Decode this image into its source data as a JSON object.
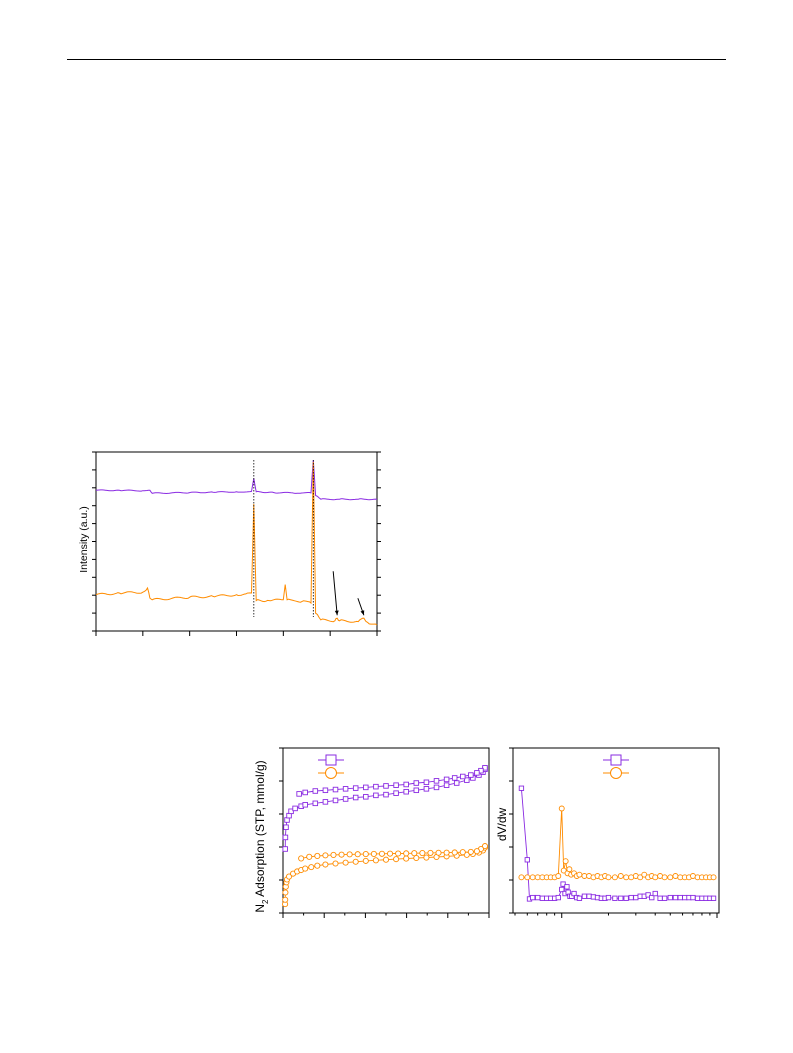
{
  "colors": {
    "purple": "#8a2be2",
    "orange": "#ff8c00",
    "axis": "#000000"
  },
  "chart_data": [
    {
      "type": "line",
      "id": "xrd",
      "title": "",
      "xlabel": "",
      "ylabel": "Intensity (a.u.)",
      "xlim": [
        0,
        60
      ],
      "ylim": [
        0,
        100
      ],
      "grid": false,
      "ticks_labeled": false,
      "dashed_reference_x": [
        33.7,
        46.4
      ],
      "arrows": [
        {
          "to_x": 51.5,
          "to_y": 7
        },
        {
          "to_x": 57.2,
          "to_y": 7
        }
      ],
      "series": [
        {
          "color": "purple",
          "baseline": 60,
          "x": [
            0,
            5,
            10,
            11.5,
            12,
            20,
            25,
            30,
            33.2,
            33.7,
            34.2,
            38,
            42,
            45.9,
            46.4,
            46.9,
            48,
            52,
            56,
            60
          ],
          "y": [
            59,
            59,
            58.5,
            59,
            55,
            56,
            56.5,
            57,
            57.5,
            75,
            57,
            56,
            55.5,
            55.5,
            100,
            52,
            47,
            47,
            47,
            47
          ]
        },
        {
          "color": "orange",
          "baseline": 20,
          "x": [
            0,
            5,
            10,
            11,
            11.5,
            12,
            20,
            25,
            30,
            32,
            33.2,
            33.7,
            34.2,
            37,
            40,
            40.4,
            40.8,
            44,
            45.9,
            46.4,
            46.9,
            48,
            51,
            51.5,
            52,
            56,
            57.2,
            58,
            60
          ],
          "y": [
            21,
            22,
            22.5,
            25,
            19,
            18,
            19.5,
            20,
            21,
            21.5,
            22,
            75,
            17.5,
            17.5,
            18,
            27,
            18,
            17,
            16,
            100,
            10,
            6,
            5.5,
            7,
            5.5,
            5,
            7,
            4.5,
            3
          ]
        }
      ]
    },
    {
      "type": "scatter",
      "id": "isotherm",
      "xlabel": "",
      "ylabel": "N2 Adsorption (STP, mmol/g)",
      "ylabel_main": "N",
      "ylabel_sub": "2",
      "ylabel_rest": " Adsorption (STP, mmol/g)",
      "xlim": [
        0,
        1
      ],
      "ylim": [
        0,
        100
      ],
      "legend": "top-left",
      "series": [
        {
          "color": "purple",
          "marker": "square",
          "adsorption": {
            "x": [
              0.001,
              0.002,
              0.005,
              0.01,
              0.02,
              0.03,
              0.05,
              0.08,
              0.1,
              0.15,
              0.2,
              0.25,
              0.3,
              0.35,
              0.4,
              0.45,
              0.5,
              0.55,
              0.6,
              0.65,
              0.7,
              0.75,
              0.8,
              0.85,
              0.9,
              0.93,
              0.96,
              0.98,
              0.99
            ],
            "y": [
              40,
              48,
              55,
              60,
              63,
              66,
              68,
              69.5,
              70.5,
              71.5,
              72.5,
              73.5,
              74.5,
              75.5,
              76,
              77,
              77.5,
              78.5,
              79.5,
              80.5,
              81.5,
              82.5,
              84,
              85.5,
              87.5,
              89,
              91,
              93,
              95
            ]
          },
          "desorption": {
            "x": [
              0.99,
              0.97,
              0.95,
              0.92,
              0.88,
              0.84,
              0.8,
              0.75,
              0.7,
              0.65,
              0.6,
              0.55,
              0.5,
              0.45,
              0.4,
              0.35,
              0.3,
              0.25,
              0.2,
              0.15,
              0.1,
              0.07
            ],
            "y": [
              96,
              94,
              92.5,
              91,
              90,
              89,
              88,
              87,
              86,
              85.5,
              84.5,
              84,
              83.5,
              83,
              82.5,
              82,
              81.5,
              81,
              80.5,
              80,
              79,
              78
            ]
          }
        },
        {
          "color": "orange",
          "marker": "circle",
          "adsorption": {
            "x": [
              0.0005,
              0.001,
              0.002,
              0.004,
              0.007,
              0.01,
              0.02,
              0.04,
              0.06,
              0.08,
              0.1,
              0.13,
              0.16,
              0.2,
              0.25,
              0.3,
              0.35,
              0.4,
              0.45,
              0.5,
              0.55,
              0.6,
              0.65,
              0.7,
              0.75,
              0.8,
              0.85,
              0.9,
              0.93,
              0.96,
              0.98,
              0.99
            ],
            "y": [
              2,
              5,
              10,
              14,
              17,
              19,
              21,
              23,
              24.5,
              25.5,
              26.5,
              27.5,
              28.5,
              29.3,
              30,
              30.6,
              31.2,
              31.8,
              32.2,
              32.6,
              33,
              33.4,
              33.8,
              34.1,
              34.5,
              34.9,
              35.4,
              36,
              36.6,
              37.5,
              39,
              41
            ]
          },
          "desorption": {
            "x": [
              0.99,
              0.97,
              0.95,
              0.92,
              0.88,
              0.84,
              0.8,
              0.76,
              0.72,
              0.68,
              0.64,
              0.6,
              0.56,
              0.52,
              0.48,
              0.44,
              0.4,
              0.36,
              0.32,
              0.28,
              0.24,
              0.2,
              0.16,
              0.12,
              0.08
            ],
            "y": [
              42,
              40,
              38.5,
              38,
              37.8,
              37.6,
              37.5,
              37.4,
              37.3,
              37.2,
              37.1,
              37,
              36.9,
              36.8,
              36.7,
              36.6,
              36.5,
              36.4,
              36.3,
              36.1,
              35.9,
              35.6,
              35.2,
              34.6,
              33.5
            ]
          }
        }
      ]
    },
    {
      "type": "scatter",
      "id": "pore-distribution",
      "xlabel": "",
      "ylabel": "dV/dw",
      "xscale": "log",
      "xlim": [
        0.5,
        10
      ],
      "ylim": [
        0,
        100
      ],
      "legend": "top-right",
      "series": [
        {
          "color": "purple",
          "marker": "square",
          "x": [
            0.55,
            0.6,
            0.62,
            0.65,
            0.7,
            0.75,
            0.8,
            0.85,
            0.9,
            0.95,
            1.0,
            1.02,
            1.05,
            1.08,
            1.1,
            1.13,
            1.16,
            1.2,
            1.25,
            1.3,
            1.4,
            1.5,
            1.6,
            1.7,
            1.8,
            1.9,
            2.0,
            2.2,
            2.4,
            2.6,
            2.8,
            3.0,
            3.2,
            3.4,
            3.6,
            3.8,
            4.0,
            4.3,
            4.6,
            5.0,
            5.4,
            5.8,
            6.2,
            6.6,
            7.0,
            7.5,
            8.0,
            8.5,
            9.0,
            9.5
          ],
          "y": [
            85,
            32,
            3,
            4,
            4,
            3.5,
            3.5,
            3.5,
            3.5,
            4,
            10,
            14,
            7,
            12,
            8,
            5,
            5,
            7,
            4,
            3.5,
            5,
            5,
            4.5,
            4,
            3.5,
            3.5,
            4,
            3.5,
            3.5,
            3.5,
            4,
            4,
            5,
            5,
            6,
            4,
            7,
            3.5,
            3.5,
            4,
            4,
            4,
            4,
            4,
            4,
            3.5,
            3.5,
            3.5,
            3.5,
            3.5
          ]
        },
        {
          "color": "orange",
          "marker": "circle",
          "x": [
            0.55,
            0.6,
            0.65,
            0.7,
            0.75,
            0.8,
            0.85,
            0.9,
            0.95,
            1.0,
            1.03,
            1.06,
            1.09,
            1.12,
            1.15,
            1.2,
            1.25,
            1.3,
            1.4,
            1.5,
            1.6,
            1.7,
            1.8,
            1.9,
            2.0,
            2.2,
            2.4,
            2.6,
            2.8,
            3.0,
            3.2,
            3.4,
            3.6,
            3.8,
            4.0,
            4.3,
            4.6,
            5.0,
            5.4,
            5.8,
            6.2,
            6.6,
            7.0,
            7.5,
            8.0,
            8.5,
            9.0,
            9.5
          ],
          "y": [
            19,
            19,
            19,
            19,
            19,
            19,
            19,
            19,
            20,
            70,
            24,
            31,
            22,
            25,
            21,
            22,
            20,
            21,
            20,
            20,
            19,
            20,
            19,
            20,
            19,
            19,
            20,
            19,
            19,
            20,
            19,
            21,
            19,
            20,
            19,
            20,
            19,
            19,
            20,
            19,
            19,
            19,
            20,
            19,
            19,
            19,
            19,
            19
          ]
        }
      ]
    }
  ]
}
